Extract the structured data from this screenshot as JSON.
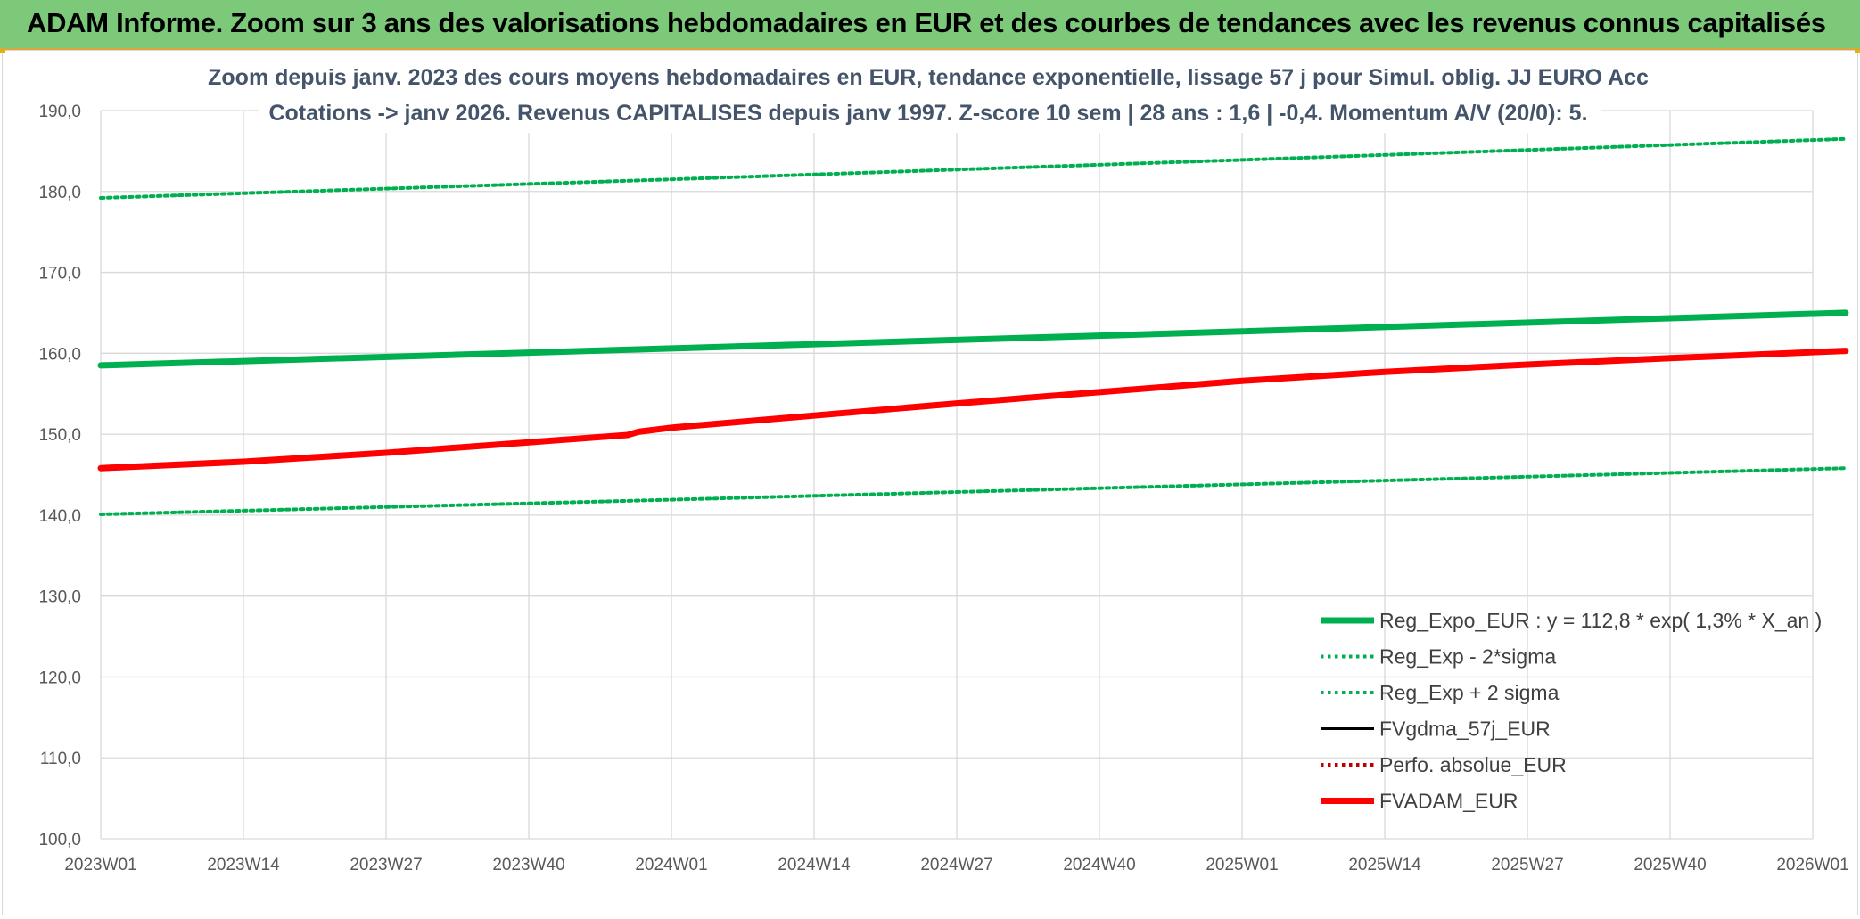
{
  "header": {
    "title": "ADAM Informe. Zoom sur 3 ans des valorisations hebdomadaires en EUR et des courbes de tendances avec les revenus connus capitalisés"
  },
  "chart_data": {
    "type": "line",
    "title_line1": "Zoom depuis janv. 2023 des cours moyens hebdomadaires en EUR, tendance exponentielle, lissage 57 j pour Simul. oblig. JJ EURO Acc",
    "title_line2": "Cotations -> janv 2026. Revenus CAPITALISES depuis janv 1997. Z-score 10 sem | 28 ans : 1,6 | -0,4. Momentum A/V (20/0): 5.",
    "ylim": [
      100,
      190
    ],
    "y_ticks": [
      "100,0",
      "110,0",
      "120,0",
      "130,0",
      "140,0",
      "150,0",
      "160,0",
      "170,0",
      "180,0",
      "190,0"
    ],
    "x_ticks": [
      "2023W01",
      "2023W14",
      "2023W27",
      "2023W40",
      "2024W01",
      "2024W14",
      "2024W27",
      "2024W40",
      "2025W01",
      "2025W14",
      "2025W27",
      "2025W40",
      "2026W01"
    ],
    "grid": true,
    "legend_position": "bottom-right",
    "series": [
      {
        "name": "Reg_Expo_EUR : y = 112,8 * exp( 1,3% *  X_an )",
        "color": "#00b050",
        "style": "solid-thick",
        "x": [
          "2023W01",
          "2024W01",
          "2025W01",
          "2026W04"
        ],
        "values": [
          158.5,
          160.6,
          162.7,
          165.0
        ]
      },
      {
        "name": "Reg_Exp - 2*sigma",
        "color": "#00b050",
        "style": "dotted",
        "x": [
          "2023W01",
          "2024W01",
          "2025W01",
          "2026W04"
        ],
        "values": [
          140.1,
          141.9,
          143.8,
          145.8
        ]
      },
      {
        "name": "Reg_Exp + 2 sigma",
        "color": "#00b050",
        "style": "dotted",
        "x": [
          "2023W01",
          "2024W01",
          "2025W01",
          "2026W04"
        ],
        "values": [
          179.2,
          181.5,
          183.9,
          186.5
        ]
      },
      {
        "name": "FVgdma_57j_EUR",
        "color": "#000000",
        "style": "solid",
        "x": [],
        "values": []
      },
      {
        "name": "Perfo. absolue_EUR",
        "color": "#c00000",
        "style": "dotted",
        "x": [],
        "values": []
      },
      {
        "name": "FVADAM_EUR",
        "color": "#ff0000",
        "style": "solid-thick",
        "x": [
          "2023W01",
          "2023W14",
          "2023W27",
          "2023W40",
          "2023W49",
          "2023W50",
          "2024W01",
          "2024W14",
          "2024W27",
          "2024W40",
          "2025W01",
          "2025W14",
          "2025W27",
          "2025W40",
          "2026W04"
        ],
        "values": [
          145.8,
          146.6,
          147.7,
          149.0,
          149.9,
          150.3,
          150.8,
          152.3,
          153.8,
          155.2,
          156.6,
          157.7,
          158.6,
          159.4,
          160.3
        ]
      }
    ]
  }
}
